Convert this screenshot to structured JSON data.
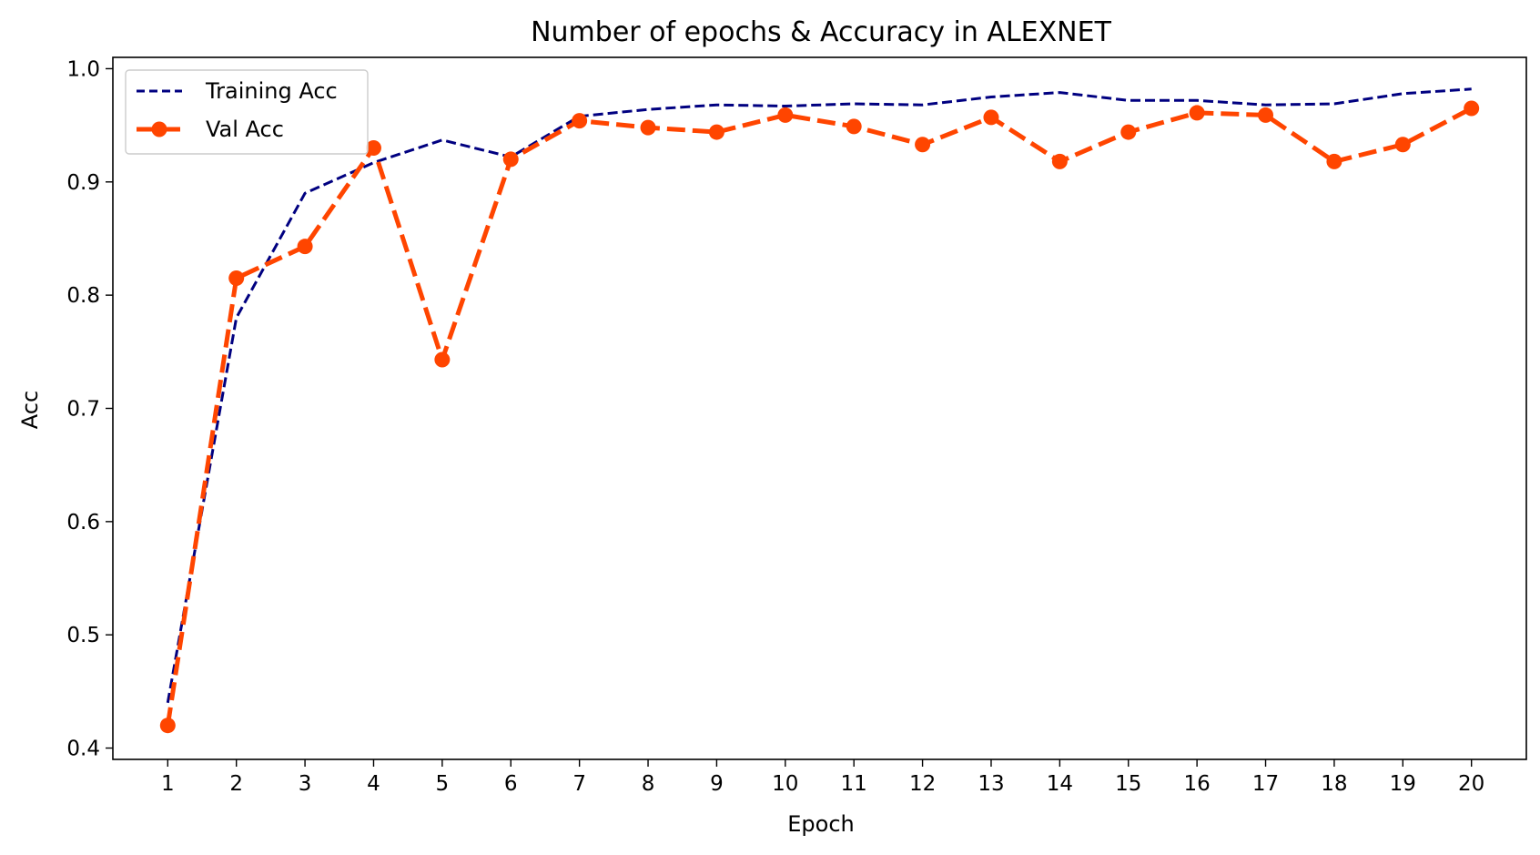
{
  "chart_data": {
    "type": "line",
    "title": "Number of epochs & Accuracy in ALEXNET",
    "xlabel": "Epoch",
    "ylabel": "Acc",
    "x": [
      1,
      2,
      3,
      4,
      5,
      6,
      7,
      8,
      9,
      10,
      11,
      12,
      13,
      14,
      15,
      16,
      17,
      18,
      19,
      20
    ],
    "xlim": [
      0.2,
      20.8
    ],
    "ylim": [
      0.39,
      1.01
    ],
    "yticks": [
      0.4,
      0.5,
      0.6,
      0.7,
      0.8,
      0.9,
      1.0
    ],
    "ytick_labels": [
      "0.4",
      "0.5",
      "0.6",
      "0.7",
      "0.8",
      "0.9",
      "1.0"
    ],
    "xtick_labels": [
      "1",
      "2",
      "3",
      "4",
      "5",
      "6",
      "7",
      "8",
      "9",
      "10",
      "11",
      "12",
      "13",
      "14",
      "15",
      "16",
      "17",
      "18",
      "19",
      "20"
    ],
    "grid": false,
    "legend_position": "top-left",
    "series": [
      {
        "name": "Training Acc",
        "color": "#000080",
        "line_style": "dashed",
        "marker": "none",
        "values": [
          0.44,
          0.78,
          0.89,
          0.917,
          0.937,
          0.922,
          0.958,
          0.964,
          0.968,
          0.967,
          0.969,
          0.968,
          0.975,
          0.979,
          0.972,
          0.972,
          0.968,
          0.969,
          0.978,
          0.982
        ]
      },
      {
        "name": "Val Acc",
        "color": "#ff4500",
        "line_style": "dashed",
        "marker": "circle",
        "values": [
          0.42,
          0.815,
          0.843,
          0.93,
          0.743,
          0.92,
          0.954,
          0.948,
          0.944,
          0.959,
          0.949,
          0.933,
          0.957,
          0.918,
          0.944,
          0.961,
          0.959,
          0.918,
          0.933,
          0.965
        ]
      }
    ]
  }
}
